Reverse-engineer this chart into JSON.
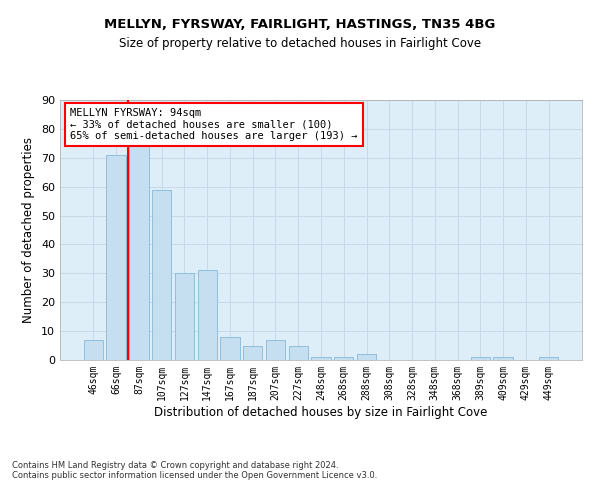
{
  "title1": "MELLYN, FYRSWAY, FAIRLIGHT, HASTINGS, TN35 4BG",
  "title2": "Size of property relative to detached houses in Fairlight Cove",
  "xlabel": "Distribution of detached houses by size in Fairlight Cove",
  "ylabel": "Number of detached properties",
  "footnote1": "Contains HM Land Registry data © Crown copyright and database right 2024.",
  "footnote2": "Contains public sector information licensed under the Open Government Licence v3.0.",
  "categories": [
    "46sqm",
    "66sqm",
    "87sqm",
    "107sqm",
    "127sqm",
    "147sqm",
    "167sqm",
    "187sqm",
    "207sqm",
    "227sqm",
    "248sqm",
    "268sqm",
    "288sqm",
    "308sqm",
    "328sqm",
    "348sqm",
    "368sqm",
    "389sqm",
    "409sqm",
    "429sqm",
    "449sqm"
  ],
  "values": [
    7,
    71,
    74,
    59,
    30,
    31,
    8,
    5,
    7,
    5,
    1,
    1,
    2,
    0,
    0,
    0,
    0,
    1,
    1,
    0,
    1
  ],
  "bar_color": "#c5dff0",
  "bar_edge_color": "#88b8d8",
  "red_line_x": 1.5,
  "annotation_text": "MELLYN FYRSWAY: 94sqm\n← 33% of detached houses are smaller (100)\n65% of semi-detached houses are larger (193) →",
  "annotation_box_color": "white",
  "annotation_box_edge_color": "red",
  "red_line_color": "red",
  "ylim": [
    0,
    90
  ],
  "yticks": [
    0,
    10,
    20,
    30,
    40,
    50,
    60,
    70,
    80,
    90
  ],
  "grid_color": "#c8d8e8",
  "background_color": "#ddeef8",
  "title1_fontsize": 9.5,
  "title2_fontsize": 8.5,
  "ylabel_fontsize": 8.5,
  "xlabel_fontsize": 8.5,
  "tick_fontsize": 7,
  "annotation_fontsize": 7.5,
  "footnote_fontsize": 6
}
